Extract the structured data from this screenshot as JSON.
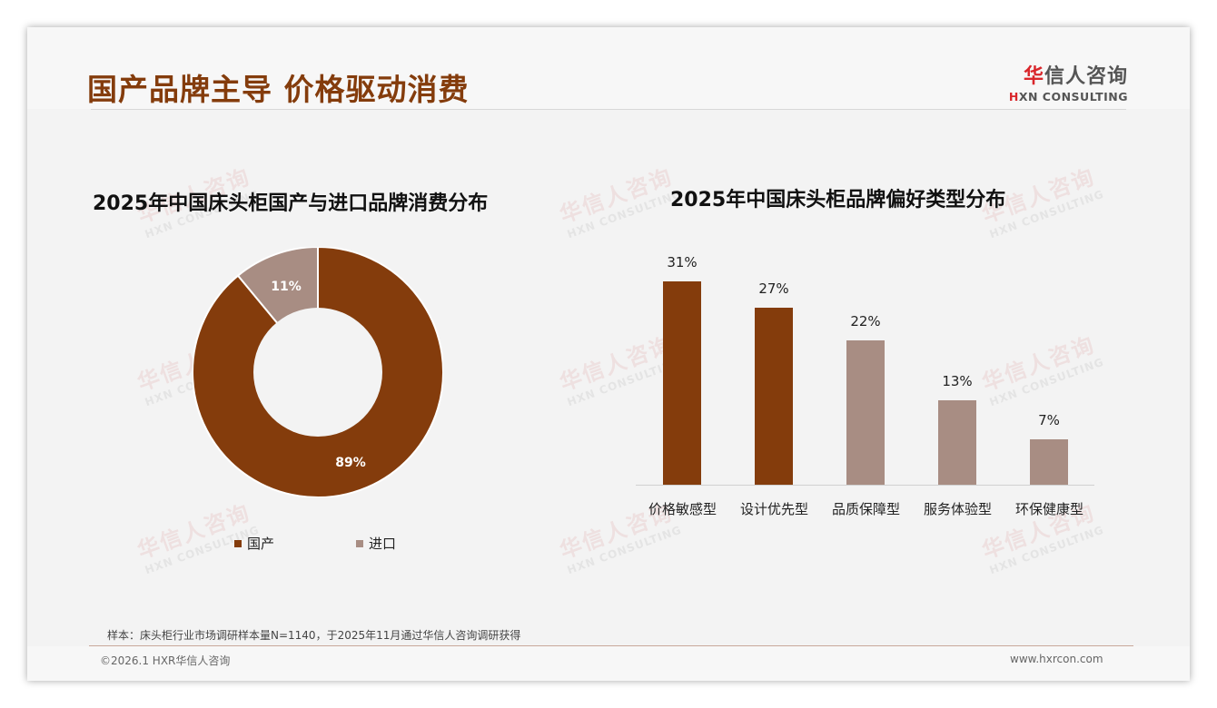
{
  "page": {
    "title": "国产品牌主导 价格驱动消费",
    "logo": {
      "cn_accent": "华",
      "cn_rest": "信人咨询",
      "en_accent": "H",
      "en_rest": "XN CONSULTING"
    },
    "watermark": {
      "cn": "华信人咨询",
      "en": "HXN CONSULTING"
    },
    "sample_note": "样本：床头柜行业市场调研样本量N=1140，于2025年11月通过华信人咨询调研获得",
    "copyright": "©2026.1 HXR华信人咨询",
    "site_url": "www.hxrcon.com"
  },
  "colors": {
    "primary": "#843c0c",
    "secondary": "#a88d83",
    "title": "#843c0c"
  },
  "chart_data": [
    {
      "type": "pie",
      "variant": "donut",
      "title": "2025年中国床头柜国产与进口品牌消费分布",
      "categories": [
        "国产",
        "进口"
      ],
      "values": [
        89,
        11
      ],
      "labels": [
        "89%",
        "11%"
      ],
      "colors": [
        "#843c0c",
        "#a88d83"
      ],
      "legend_position": "bottom"
    },
    {
      "type": "bar",
      "title": "2025年中国床头柜品牌偏好类型分布",
      "categories": [
        "价格敏感型",
        "设计优先型",
        "品质保障型",
        "服务体验型",
        "环保健康型"
      ],
      "values": [
        31,
        27,
        22,
        13,
        7
      ],
      "labels": [
        "31%",
        "27%",
        "22%",
        "13%",
        "7%"
      ],
      "colors": [
        "#843c0c",
        "#843c0c",
        "#a88d83",
        "#a88d83",
        "#a88d83"
      ],
      "xlabel": "",
      "ylabel": "",
      "ylim": [
        0,
        35
      ],
      "grid": false
    }
  ]
}
